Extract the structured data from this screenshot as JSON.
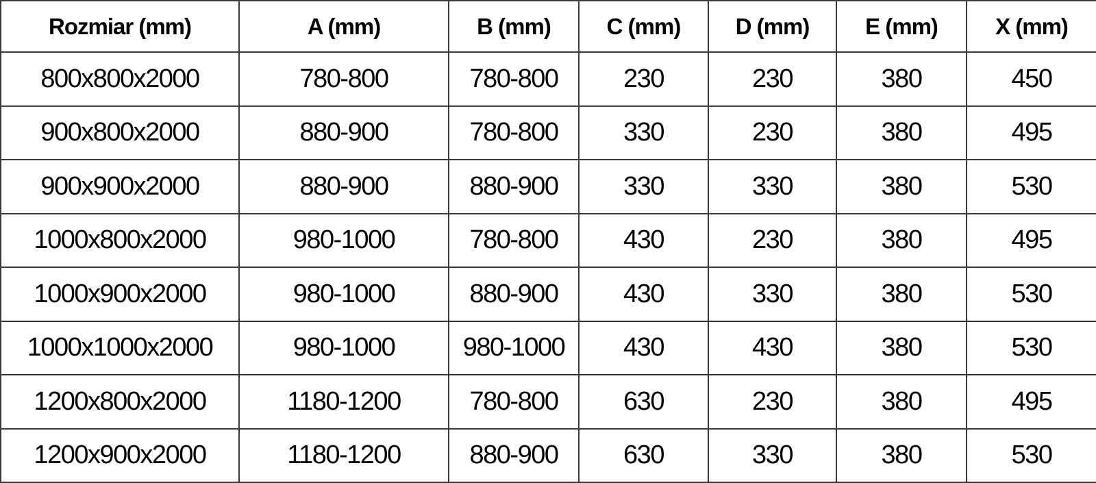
{
  "table": {
    "headers": [
      "Rozmiar (mm)",
      "A (mm)",
      "B (mm)",
      "C (mm)",
      "D (mm)",
      "E (mm)",
      "X (mm)"
    ],
    "rows": [
      [
        "800x800x2000",
        "780-800",
        "780-800",
        "230",
        "230",
        "380",
        "450"
      ],
      [
        "900x800x2000",
        "880-900",
        "780-800",
        "330",
        "230",
        "380",
        "495"
      ],
      [
        "900x900x2000",
        "880-900",
        "880-900",
        "330",
        "330",
        "380",
        "530"
      ],
      [
        "1000x800x2000",
        "980-1000",
        "780-800",
        "430",
        "230",
        "380",
        "495"
      ],
      [
        "1000x900x2000",
        "980-1000",
        "880-900",
        "430",
        "330",
        "380",
        "530"
      ],
      [
        "1000x1000x2000",
        "980-1000",
        "980-1000",
        "430",
        "430",
        "380",
        "530"
      ],
      [
        "1200x800x2000",
        "1180-1200",
        "780-800",
        "630",
        "230",
        "380",
        "495"
      ],
      [
        "1200x900x2000",
        "1180-1200",
        "880-900",
        "630",
        "330",
        "380",
        "530"
      ]
    ],
    "colors": {
      "grid": "#3a3a3a",
      "text": "#000000",
      "background": "#ffffff"
    }
  }
}
